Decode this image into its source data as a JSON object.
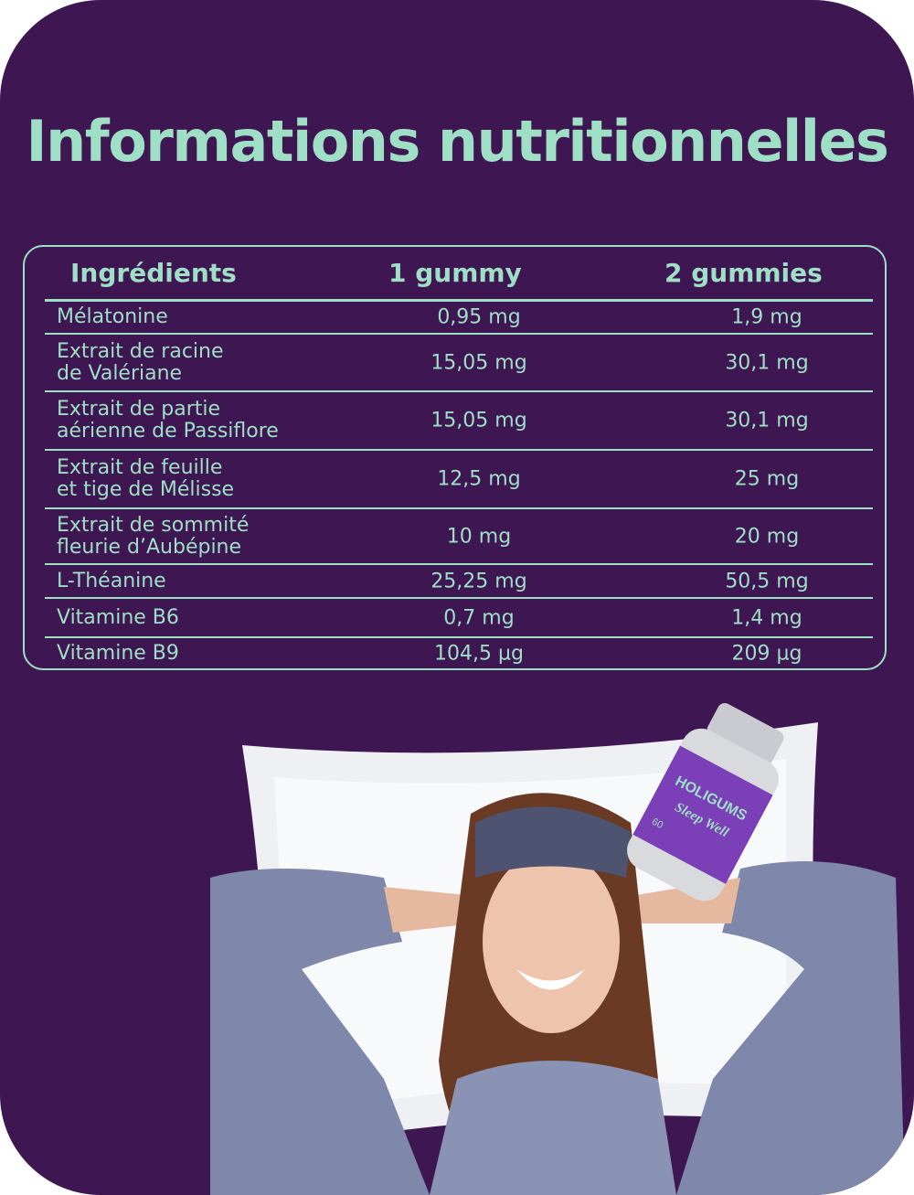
{
  "title": "Informations nutritionnelles",
  "table": {
    "headers": [
      "Ingrédients",
      "1 gummy",
      "2 gummies"
    ],
    "rows": [
      {
        "name": "Mélatonine",
        "one": "0,95 mg",
        "two": "1,9 mg"
      },
      {
        "name": "Extrait de racine\nde Valériane",
        "one": "15,05 mg",
        "two": "30,1 mg"
      },
      {
        "name": "Extrait de partie\naérienne de Passiflore",
        "one": "15,05 mg",
        "two": "30,1 mg"
      },
      {
        "name": "Extrait de feuille\net tige de Mélisse",
        "one": "12,5 mg",
        "two": "25 mg"
      },
      {
        "name": "Extrait de sommité\nfleurie d’Aubépine",
        "one": "10 mg",
        "two": "20 mg"
      },
      {
        "name": "L-Théanine",
        "one": "25,25 mg",
        "two": "50,5 mg"
      },
      {
        "name": "Vitamine B6",
        "one": "0,7 mg",
        "two": "1,4 mg"
      },
      {
        "name": "Vitamine B9",
        "one": "104,5 µg",
        "two": "209 µg"
      }
    ]
  },
  "product": {
    "brand": "HOLIGUMS",
    "name": "Sleep Well",
    "count": "60"
  },
  "colors": {
    "background": "#3d1652",
    "accent": "#9fdfc6",
    "label": "#7b3fb8"
  }
}
